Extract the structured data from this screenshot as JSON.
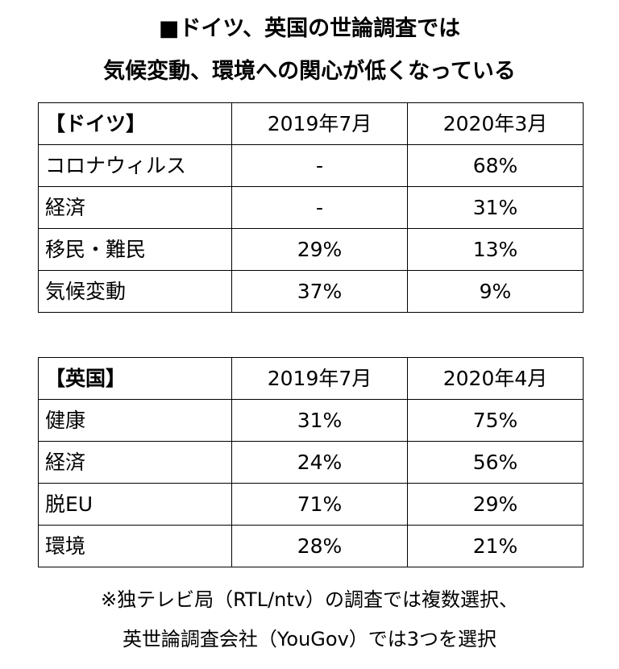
{
  "title": {
    "line1": "■ドイツ、英国の世論調査では",
    "line2": "気候変動、環境への関心が低くなっている"
  },
  "germany": {
    "header": [
      "【ドイツ】",
      "2019年7月",
      "2020年3月"
    ],
    "rows": [
      {
        "label": "コロナウィルス",
        "v2019": "-",
        "v2020": "68%"
      },
      {
        "label": "経済",
        "v2019": "-",
        "v2020": "31%"
      },
      {
        "label": "移民・難民",
        "v2019": "29%",
        "v2020": "13%"
      },
      {
        "label": "気候変動",
        "v2019": "37%",
        "v2020": "9%"
      }
    ]
  },
  "uk": {
    "header": [
      "【英国】",
      "2019年7月",
      "2020年4月"
    ],
    "rows": [
      {
        "label": "健康",
        "v2019": "31%",
        "v2020": "75%"
      },
      {
        "label": "経済",
        "v2019": "24%",
        "v2020": "56%"
      },
      {
        "label": "脱EU",
        "v2019": "71%",
        "v2020": "29%"
      },
      {
        "label": "環境",
        "v2019": "28%",
        "v2020": "21%"
      }
    ]
  },
  "note": {
    "line1": "※独テレビ局（RTL/ntv）の調査では複数選択、",
    "line2": "英世論調査会社（YouGov）では3つを選択"
  }
}
